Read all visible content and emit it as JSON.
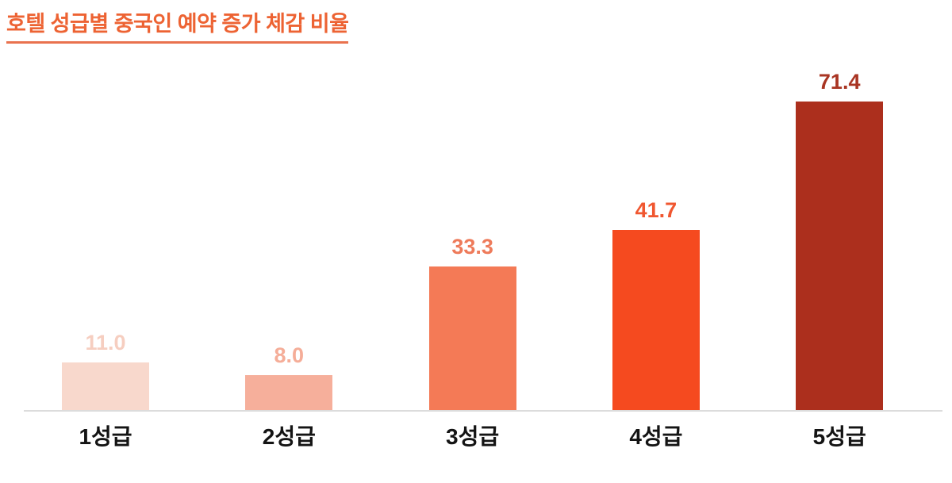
{
  "page": {
    "background_color": "#FFFFFF"
  },
  "chart_data": {
    "type": "bar",
    "title": "호텔 성급별 중국인 예약 증가 체감 비율",
    "title_color": "#ED6333",
    "title_underline": true,
    "categories": [
      "1성급",
      "2성급",
      "3성급",
      "4성급",
      "5성급"
    ],
    "values": [
      11.0,
      8.0,
      33.3,
      41.7,
      71.4
    ],
    "value_labels": [
      "11.0",
      "8.0",
      "33.3",
      "41.7",
      "71.4"
    ],
    "bar_colors": [
      "#F8D8CC",
      "#F6AF9B",
      "#F47A56",
      "#F54A1F",
      "#AC2F1D"
    ],
    "value_label_colors": [
      "#F6CEC0",
      "#F5AD98",
      "#EE7B5B",
      "#F05730",
      "#A93523"
    ],
    "category_label_color": "#141414",
    "axis_line_color": "#DCDCDC",
    "xlabel": "",
    "ylabel": "",
    "ylim": [
      0,
      80
    ],
    "grid": false,
    "legend": false
  }
}
